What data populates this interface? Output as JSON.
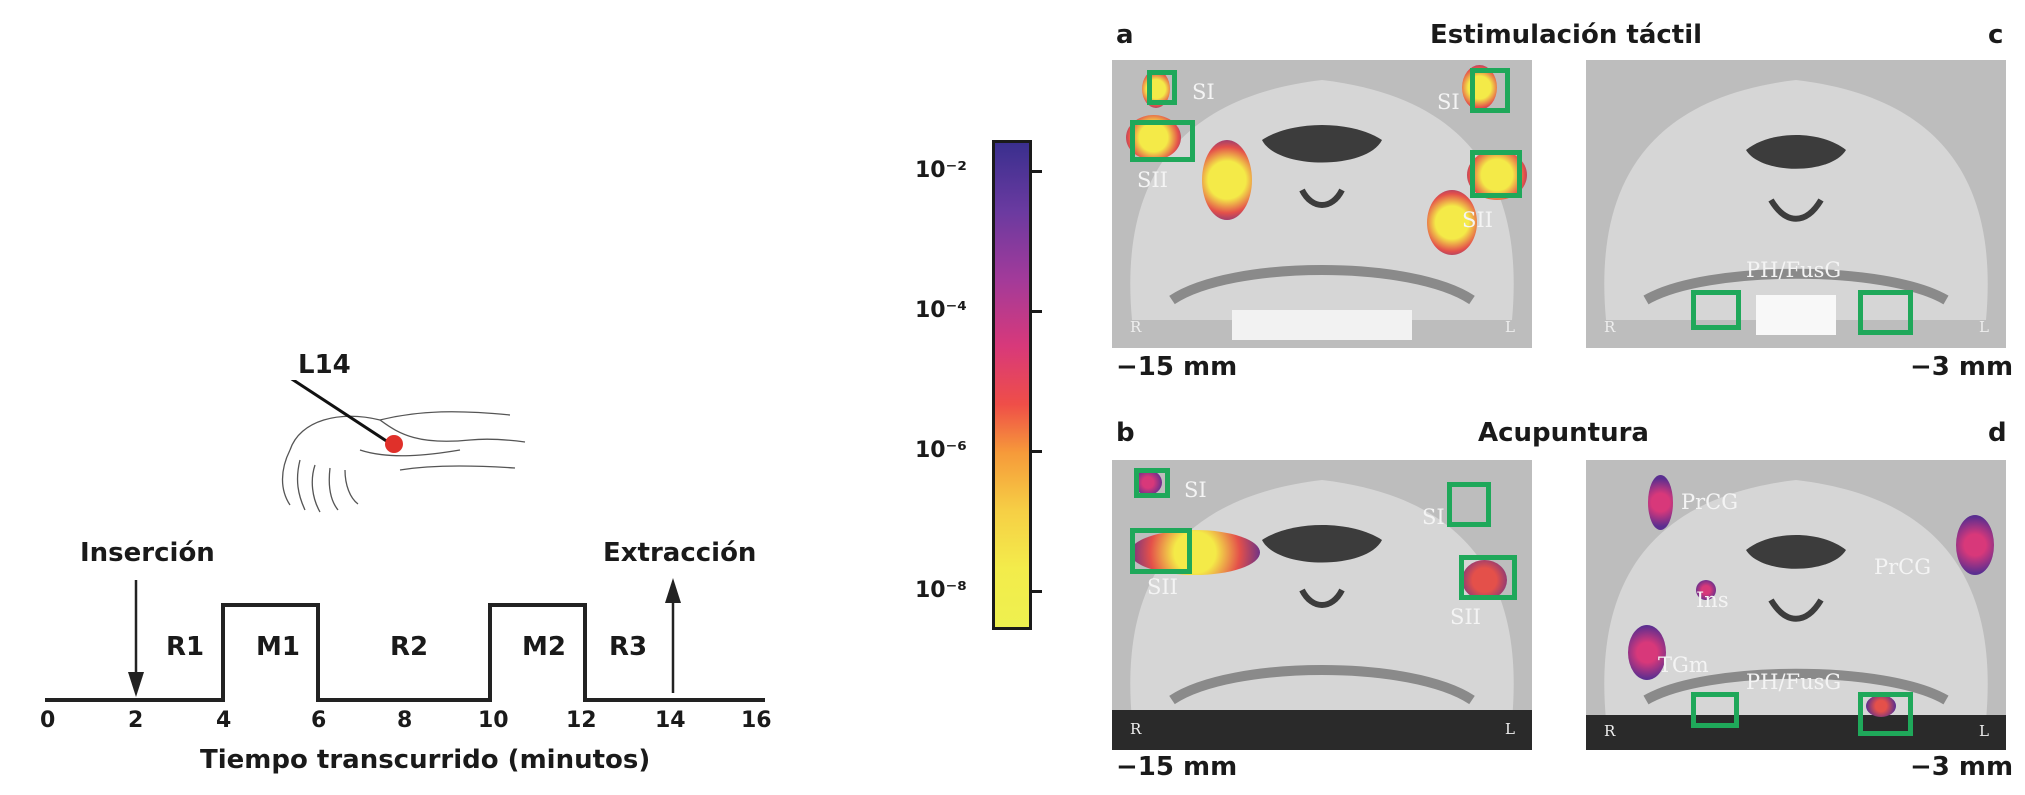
{
  "hand_figure": {
    "point_label": "L14",
    "insertion_label": "Inserción",
    "extraction_label": "Extracción"
  },
  "timeline": {
    "xlabel": "Tiempo transcurrido (minutos)",
    "ticks": [
      "0",
      "2",
      "4",
      "6",
      "8",
      "10",
      "12",
      "14",
      "16"
    ],
    "blocks": [
      "R1",
      "M1",
      "R2",
      "M2",
      "R3"
    ]
  },
  "colorbar": {
    "ticks": [
      "10⁻²",
      "10⁻⁴",
      "10⁻⁶",
      "10⁻⁸"
    ],
    "colors": [
      "#3b2f8f",
      "#8a3aa0",
      "#d8387a",
      "#f05a3a",
      "#f7a53a",
      "#f6e24a",
      "#f4f04a"
    ]
  },
  "panels": {
    "row1_title": "Estimulación táctil",
    "row2_title": "Acupuntura",
    "a": {
      "letter": "a",
      "depth": "−15 mm",
      "regions": [
        "SI",
        "SI",
        "SII",
        "SII"
      ],
      "orient_r": "R",
      "orient_l": "L"
    },
    "c": {
      "letter": "c",
      "depth": "−3 mm",
      "regions": [
        "PH/FusG"
      ],
      "orient_r": "R",
      "orient_l": "L"
    },
    "b": {
      "letter": "b",
      "depth": "−15 mm",
      "regions": [
        "SI",
        "SI",
        "SII",
        "SII"
      ],
      "orient_r": "R",
      "orient_l": "L"
    },
    "d": {
      "letter": "d",
      "depth": "−3 mm",
      "regions": [
        "PrCG",
        "PrCG",
        "Ins",
        "TGm",
        "PH/FusG"
      ],
      "orient_r": "R",
      "orient_l": "L"
    }
  }
}
